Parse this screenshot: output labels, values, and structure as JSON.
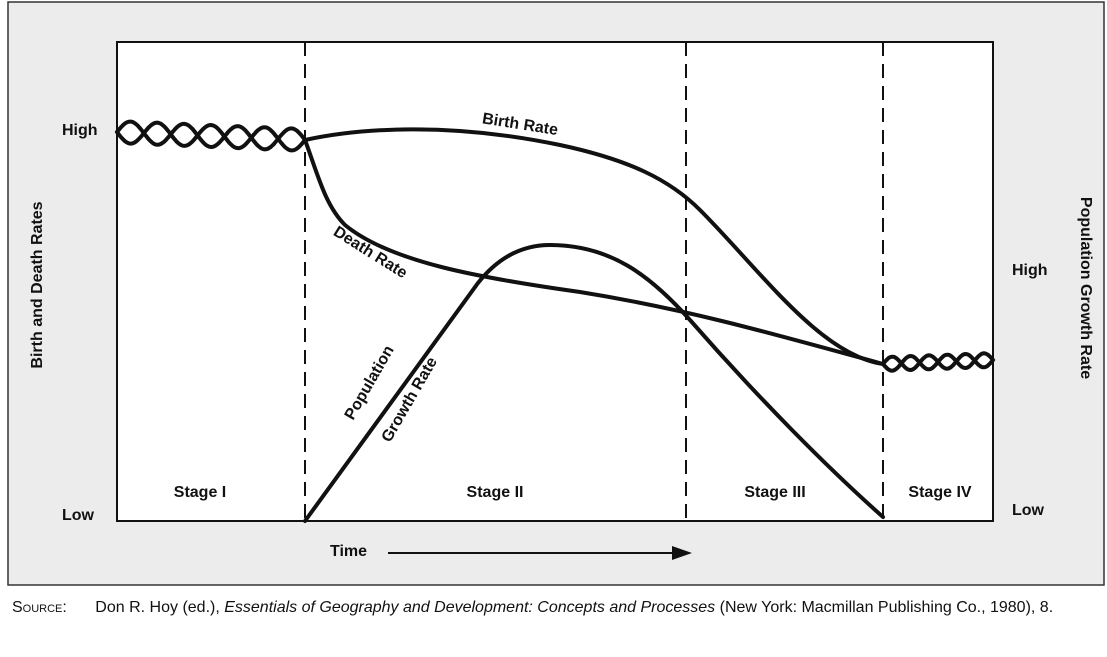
{
  "diagram": {
    "y_axis_left": {
      "title": "Birth and Death Rates",
      "high": "High",
      "low": "Low"
    },
    "y_axis_right": {
      "title": "Population Growth Rate",
      "high": "High",
      "low": "Low"
    },
    "x_axis": {
      "title": "Time"
    },
    "curves": {
      "birth_rate": "Birth Rate",
      "death_rate": "Death Rate",
      "population_growth_rate": [
        "Population",
        "Growth Rate"
      ]
    },
    "stages": [
      "Stage I",
      "Stage II",
      "Stage III",
      "Stage IV"
    ]
  },
  "source": {
    "label": "Source:",
    "text_before": "Don R. Hoy (ed.),",
    "title_italic": "Essentials of Geography and Development: Concepts and Processes",
    "text_after": "(New York: Macmillan Publishing Co., 1980), 8."
  }
}
